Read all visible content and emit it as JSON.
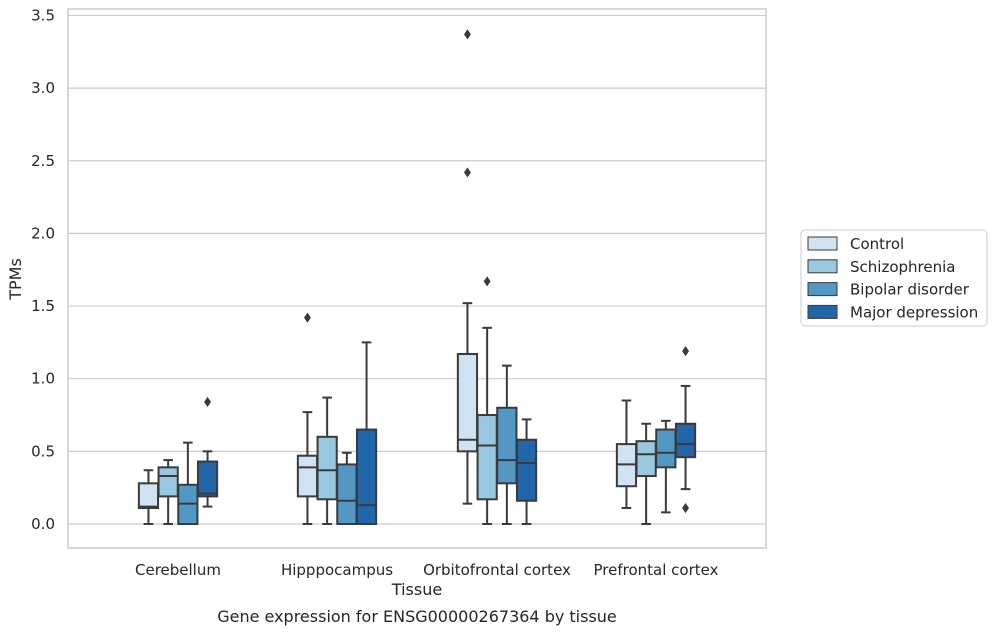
{
  "chart_data": {
    "type": "box",
    "title": "",
    "caption": "Gene expression for ENSG00000267364 by tissue",
    "xlabel": "Tissue",
    "ylabel": "TPMs",
    "ylim": [
      -0.16,
      3.56
    ],
    "yticks": [
      0.0,
      0.5,
      1.0,
      1.5,
      2.0,
      2.5,
      3.0,
      3.5
    ],
    "ytick_labels": [
      "0.0",
      "0.5",
      "1.0",
      "1.5",
      "2.0",
      "2.5",
      "3.0",
      "3.5"
    ],
    "grid": "horizontal",
    "legend_position": "right",
    "categories": [
      "Cerebellum",
      "Hipppocampus",
      "Orbitofrontal cortex",
      "Prefrontal cortex"
    ],
    "series": [
      {
        "name": "Control",
        "color": "#d1e2f2",
        "boxes": [
          {
            "whislo": 0.0,
            "q1": 0.11,
            "med": 0.12,
            "q3": 0.28,
            "whishi": 0.37,
            "fliers": []
          },
          {
            "whislo": 0.0,
            "q1": 0.19,
            "med": 0.39,
            "q3": 0.47,
            "whishi": 0.77,
            "fliers": [
              1.42
            ]
          },
          {
            "whislo": 0.14,
            "q1": 0.5,
            "med": 0.58,
            "q3": 1.17,
            "whishi": 1.52,
            "fliers": [
              2.42,
              3.37
            ]
          },
          {
            "whislo": 0.11,
            "q1": 0.26,
            "med": 0.41,
            "q3": 0.55,
            "whishi": 0.85,
            "fliers": []
          }
        ]
      },
      {
        "name": "Schizophrenia",
        "color": "#9ac8e0",
        "boxes": [
          {
            "whislo": 0.0,
            "q1": 0.19,
            "med": 0.33,
            "q3": 0.39,
            "whishi": 0.44,
            "fliers": []
          },
          {
            "whislo": 0.0,
            "q1": 0.17,
            "med": 0.37,
            "q3": 0.6,
            "whishi": 0.87,
            "fliers": []
          },
          {
            "whislo": 0.0,
            "q1": 0.17,
            "med": 0.54,
            "q3": 0.75,
            "whishi": 1.35,
            "fliers": [
              1.67
            ]
          },
          {
            "whislo": 0.0,
            "q1": 0.33,
            "med": 0.48,
            "q3": 0.57,
            "whishi": 0.69,
            "fliers": []
          }
        ]
      },
      {
        "name": "Bipolar disorder",
        "color": "#5198c5",
        "boxes": [
          {
            "whislo": 0.0,
            "q1": 0.0,
            "med": 0.14,
            "q3": 0.27,
            "whishi": 0.56,
            "fliers": []
          },
          {
            "whislo": 0.0,
            "q1": 0.0,
            "med": 0.16,
            "q3": 0.41,
            "whishi": 0.49,
            "fliers": []
          },
          {
            "whislo": 0.0,
            "q1": 0.28,
            "med": 0.44,
            "q3": 0.8,
            "whishi": 1.09,
            "fliers": []
          },
          {
            "whislo": 0.08,
            "q1": 0.39,
            "med": 0.49,
            "q3": 0.65,
            "whishi": 0.71,
            "fliers": []
          }
        ]
      },
      {
        "name": "Major depression",
        "color": "#2166a8",
        "boxes": [
          {
            "whislo": 0.12,
            "q1": 0.19,
            "med": 0.21,
            "q3": 0.43,
            "whishi": 0.5,
            "fliers": [
              0.84
            ]
          },
          {
            "whislo": 0.0,
            "q1": 0.0,
            "med": 0.13,
            "q3": 0.65,
            "whishi": 1.25,
            "fliers": []
          },
          {
            "whislo": 0.0,
            "q1": 0.16,
            "med": 0.42,
            "q3": 0.58,
            "whishi": 0.72,
            "fliers": []
          },
          {
            "whislo": 0.24,
            "q1": 0.46,
            "med": 0.55,
            "q3": 0.69,
            "whishi": 0.95,
            "fliers": [
              0.11,
              1.19
            ]
          }
        ]
      }
    ]
  }
}
